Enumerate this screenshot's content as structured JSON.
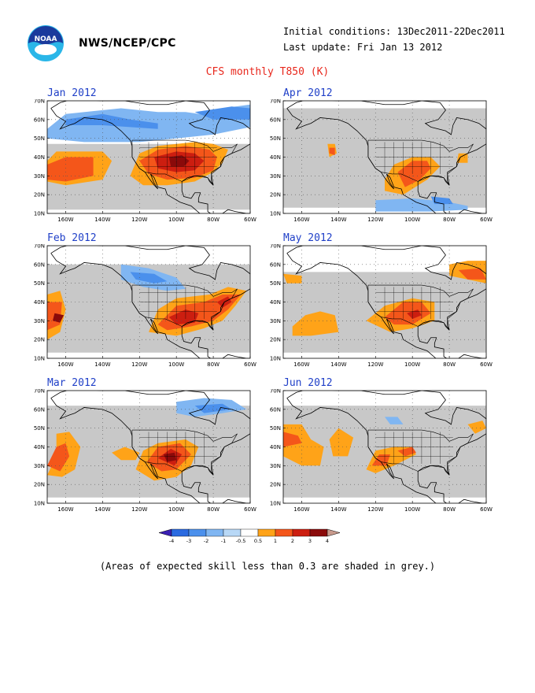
{
  "header": {
    "organization": "NWS/NCEP/CPC",
    "logo_text": "NOAA",
    "initial_conditions": "Initial conditions: 13Dec2011-22Dec2011",
    "last_update": "Last update: Fri Jan 13 2012",
    "title": "CFS monthly T850 (K)"
  },
  "axes": {
    "lat_labels": [
      "70N",
      "60N",
      "50N",
      "40N",
      "30N",
      "20N",
      "10N"
    ],
    "lon_labels": [
      "160W",
      "140W",
      "120W",
      "100W",
      "80W",
      "60W"
    ]
  },
  "panels": [
    {
      "id": "jan",
      "title": "Jan 2012"
    },
    {
      "id": "apr",
      "title": "Apr 2012"
    },
    {
      "id": "feb",
      "title": "Feb 2012"
    },
    {
      "id": "may",
      "title": "May 2012"
    },
    {
      "id": "mar",
      "title": "Mar 2012"
    },
    {
      "id": "jun",
      "title": "Jun 2012"
    }
  ],
  "colorbar": {
    "labels": [
      "-4",
      "-3",
      "-2",
      "-1",
      "-0.5",
      "0.5",
      "1",
      "2",
      "3",
      "4"
    ],
    "colors": [
      "#3a1fb4",
      "#2a6ae0",
      "#4b90ec",
      "#80b6f2",
      "#b8d8f6",
      "#ffffff",
      "#ffa318",
      "#f4561a",
      "#cc1e10",
      "#8a0a0a",
      "#c89a8c"
    ]
  },
  "footnote": "(Areas of expected skill less than 0.3 are shaded in grey.)",
  "colors": {
    "title": "#e8271c",
    "panel_title": "#2040c8",
    "grey_low_skill": "#c8c8c8",
    "warm_1": "#ffa318",
    "warm_2": "#f4561a",
    "warm_3": "#cc1e10",
    "warm_4": "#8a0a0a",
    "cool_1": "#80b6f2",
    "cool_2": "#4b90ec"
  }
}
